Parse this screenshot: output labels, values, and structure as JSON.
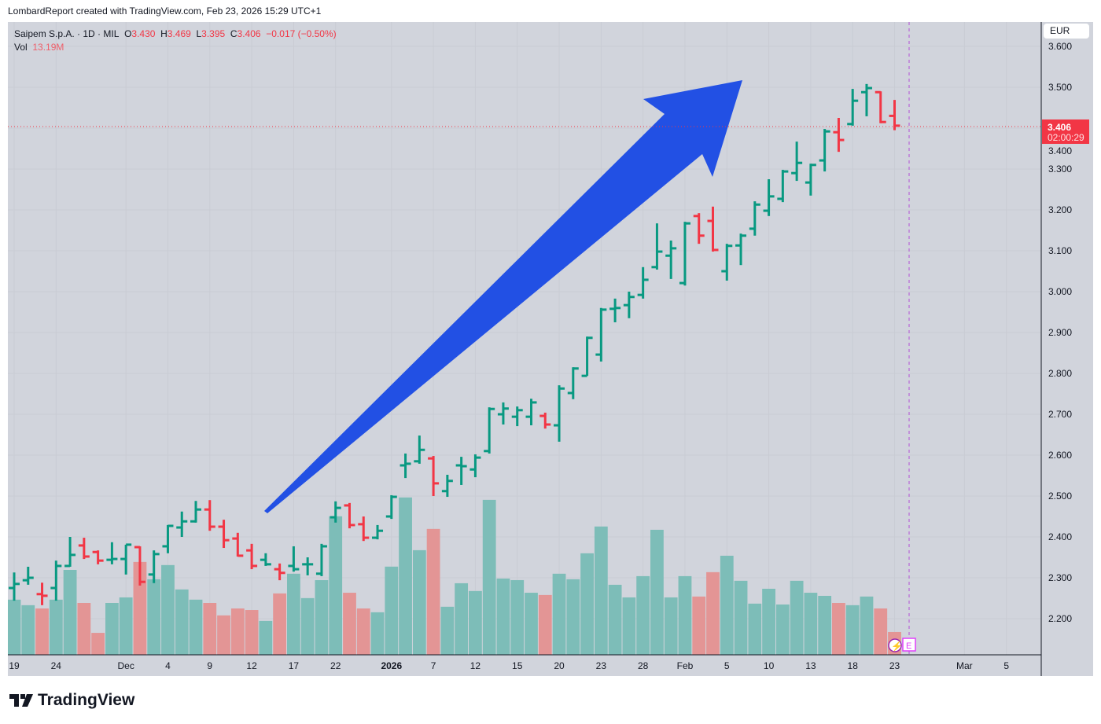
{
  "credit": "LombardReport created with TradingView.com, Feb 23, 2026 15:29 UTC+1",
  "legend": {
    "symbol": "Saipem S.p.A. · 1D · MIL",
    "o_label": "O",
    "o": "3.430",
    "h_label": "H",
    "h": "3.469",
    "l_label": "L",
    "l": "3.395",
    "c_label": "C",
    "c": "3.406",
    "change": "−0.017 (−0.50%)",
    "vol_label": "Vol",
    "vol": "13.19M"
  },
  "currency": "EUR",
  "last_price": {
    "price": "3.406",
    "countdown": "02:00:29"
  },
  "event_icons": {
    "dividend_icon": "lightning-icon",
    "earnings": "E"
  },
  "brand": "TradingView",
  "colors": {
    "up": "#089981",
    "down": "#f23645",
    "vol_up": "#7dbdb8",
    "vol_down": "#e39595",
    "arrow": "#2250e4",
    "bg": "#d1d4dc"
  },
  "chart_data": {
    "type": "ohlc",
    "title": "Saipem S.p.A. · 1D · MIL",
    "ylim": [
      2.12,
      3.65
    ],
    "yticks": [
      "3.600",
      "3.500",
      "3.400",
      "3.300",
      "3.200",
      "3.100",
      "3.000",
      "2.900",
      "2.800",
      "2.700",
      "2.600",
      "2.500",
      "2.400",
      "2.300",
      "2.200"
    ],
    "xticks": [
      {
        "label": "19",
        "bar": 0
      },
      {
        "label": "24",
        "bar": 3
      },
      {
        "label": "Dec",
        "bar": 8
      },
      {
        "label": "4",
        "bar": 11
      },
      {
        "label": "9",
        "bar": 14
      },
      {
        "label": "12",
        "bar": 17
      },
      {
        "label": "17",
        "bar": 20
      },
      {
        "label": "22",
        "bar": 23
      },
      {
        "label": "2026",
        "bar": 27,
        "bold": true
      },
      {
        "label": "7",
        "bar": 30
      },
      {
        "label": "12",
        "bar": 33
      },
      {
        "label": "15",
        "bar": 36
      },
      {
        "label": "20",
        "bar": 39
      },
      {
        "label": "23",
        "bar": 42
      },
      {
        "label": "28",
        "bar": 45
      },
      {
        "label": "Feb",
        "bar": 48
      },
      {
        "label": "5",
        "bar": 51
      },
      {
        "label": "10",
        "bar": 54
      },
      {
        "label": "13",
        "bar": 57
      },
      {
        "label": "18",
        "bar": 60
      },
      {
        "label": "23",
        "bar": 63
      },
      {
        "label": "Mar",
        "bar": 68
      },
      {
        "label": "5",
        "bar": 71
      }
    ],
    "volume_unit": "M",
    "bars_fields": [
      "open",
      "high",
      "low",
      "close",
      "volume",
      "up"
    ],
    "bars": [
      [
        2.275,
        2.313,
        2.244,
        2.285,
        31.9,
        1
      ],
      [
        2.294,
        2.327,
        2.283,
        2.3,
        28.7,
        1
      ],
      [
        2.26,
        2.288,
        2.233,
        2.256,
        26.8,
        0
      ],
      [
        2.275,
        2.342,
        2.244,
        2.329,
        31.9,
        1
      ],
      [
        2.329,
        2.4,
        2.327,
        2.356,
        49.1,
        1
      ],
      [
        2.379,
        2.398,
        2.346,
        2.352,
        30.0,
        0
      ],
      [
        2.363,
        2.367,
        2.333,
        2.342,
        12.7,
        0
      ],
      [
        2.344,
        2.387,
        2.333,
        2.346,
        30.0,
        1
      ],
      [
        2.346,
        2.381,
        2.308,
        2.381,
        33.2,
        1
      ],
      [
        2.375,
        2.377,
        2.281,
        2.29,
        53.7,
        0
      ],
      [
        2.308,
        2.367,
        2.287,
        2.358,
        43.7,
        1
      ],
      [
        2.377,
        2.429,
        2.36,
        2.427,
        51.9,
        1
      ],
      [
        2.423,
        2.462,
        2.4,
        2.438,
        37.8,
        1
      ],
      [
        2.438,
        2.488,
        2.435,
        2.467,
        31.9,
        1
      ],
      [
        2.467,
        2.49,
        2.415,
        2.425,
        30.0,
        0
      ],
      [
        2.425,
        2.442,
        2.373,
        2.392,
        22.8,
        0
      ],
      [
        2.396,
        2.41,
        2.352,
        2.354,
        26.8,
        0
      ],
      [
        2.367,
        2.383,
        2.321,
        2.329,
        25.9,
        0
      ],
      [
        2.344,
        2.36,
        2.329,
        2.333,
        19.6,
        1
      ],
      [
        2.321,
        2.335,
        2.294,
        2.312,
        35.5,
        0
      ],
      [
        2.329,
        2.377,
        2.315,
        2.321,
        46.9,
        1
      ],
      [
        2.333,
        2.35,
        2.306,
        2.333,
        32.8,
        1
      ],
      [
        2.31,
        2.383,
        2.304,
        2.377,
        43.2,
        1
      ],
      [
        2.448,
        2.487,
        2.435,
        2.471,
        80.1,
        1
      ],
      [
        2.477,
        2.483,
        2.421,
        2.429,
        35.9,
        0
      ],
      [
        2.431,
        2.45,
        2.39,
        2.398,
        26.8,
        0
      ],
      [
        2.398,
        2.429,
        2.394,
        2.415,
        24.6,
        1
      ],
      [
        2.45,
        2.502,
        2.444,
        2.498,
        51.0,
        1
      ],
      [
        2.575,
        2.604,
        2.544,
        2.579,
        91.0,
        1
      ],
      [
        2.585,
        2.648,
        2.579,
        2.613,
        60.5,
        1
      ],
      [
        2.592,
        2.598,
        2.5,
        2.531,
        72.8,
        0
      ],
      [
        2.512,
        2.552,
        2.498,
        2.537,
        27.8,
        1
      ],
      [
        2.575,
        2.596,
        2.527,
        2.573,
        41.4,
        1
      ],
      [
        2.565,
        2.602,
        2.546,
        2.594,
        36.9,
        1
      ],
      [
        2.61,
        2.717,
        2.604,
        2.713,
        89.6,
        1
      ],
      [
        2.7,
        2.729,
        2.675,
        2.714,
        44.1,
        1
      ],
      [
        2.694,
        2.719,
        2.671,
        2.71,
        43.2,
        1
      ],
      [
        2.694,
        2.738,
        2.673,
        2.729,
        35.9,
        1
      ],
      [
        2.696,
        2.704,
        2.665,
        2.675,
        34.6,
        0
      ],
      [
        2.673,
        2.771,
        2.633,
        2.763,
        46.9,
        1
      ],
      [
        2.752,
        2.815,
        2.737,
        2.812,
        43.7,
        1
      ],
      [
        2.794,
        2.89,
        2.794,
        2.887,
        58.7,
        1
      ],
      [
        2.846,
        2.96,
        2.829,
        2.956,
        74.2,
        1
      ],
      [
        2.958,
        2.983,
        2.925,
        2.96,
        40.5,
        1
      ],
      [
        2.967,
        3.0,
        2.935,
        2.987,
        33.2,
        1
      ],
      [
        2.992,
        3.06,
        2.983,
        3.029,
        45.5,
        1
      ],
      [
        3.06,
        3.167,
        3.054,
        3.098,
        72.3,
        1
      ],
      [
        3.088,
        3.125,
        3.031,
        3.106,
        33.2,
        1
      ],
      [
        3.021,
        3.171,
        3.015,
        3.167,
        45.5,
        1
      ],
      [
        3.185,
        3.192,
        3.117,
        3.137,
        33.7,
        0
      ],
      [
        3.173,
        3.208,
        3.098,
        3.102,
        47.8,
        0
      ],
      [
        3.05,
        3.117,
        3.027,
        3.112,
        57.3,
        1
      ],
      [
        3.113,
        3.142,
        3.065,
        3.137,
        42.8,
        1
      ],
      [
        3.154,
        3.221,
        3.137,
        3.213,
        29.6,
        1
      ],
      [
        3.198,
        3.275,
        3.185,
        3.233,
        38.2,
        1
      ],
      [
        3.227,
        3.298,
        3.219,
        3.294,
        29.1,
        1
      ],
      [
        3.29,
        3.367,
        3.271,
        3.315,
        42.8,
        1
      ],
      [
        3.267,
        3.313,
        3.235,
        3.31,
        35.9,
        1
      ],
      [
        3.321,
        3.398,
        3.294,
        3.392,
        34.1,
        1
      ],
      [
        3.39,
        3.425,
        3.342,
        3.371,
        30.0,
        0
      ],
      [
        3.41,
        3.496,
        3.406,
        3.467,
        28.7,
        1
      ],
      [
        3.488,
        3.508,
        3.429,
        3.498,
        33.7,
        1
      ],
      [
        3.488,
        3.49,
        3.412,
        3.415,
        26.8,
        0
      ],
      [
        3.43,
        3.469,
        3.395,
        3.406,
        13.19,
        0
      ]
    ],
    "annotation": "large upward arrow"
  }
}
